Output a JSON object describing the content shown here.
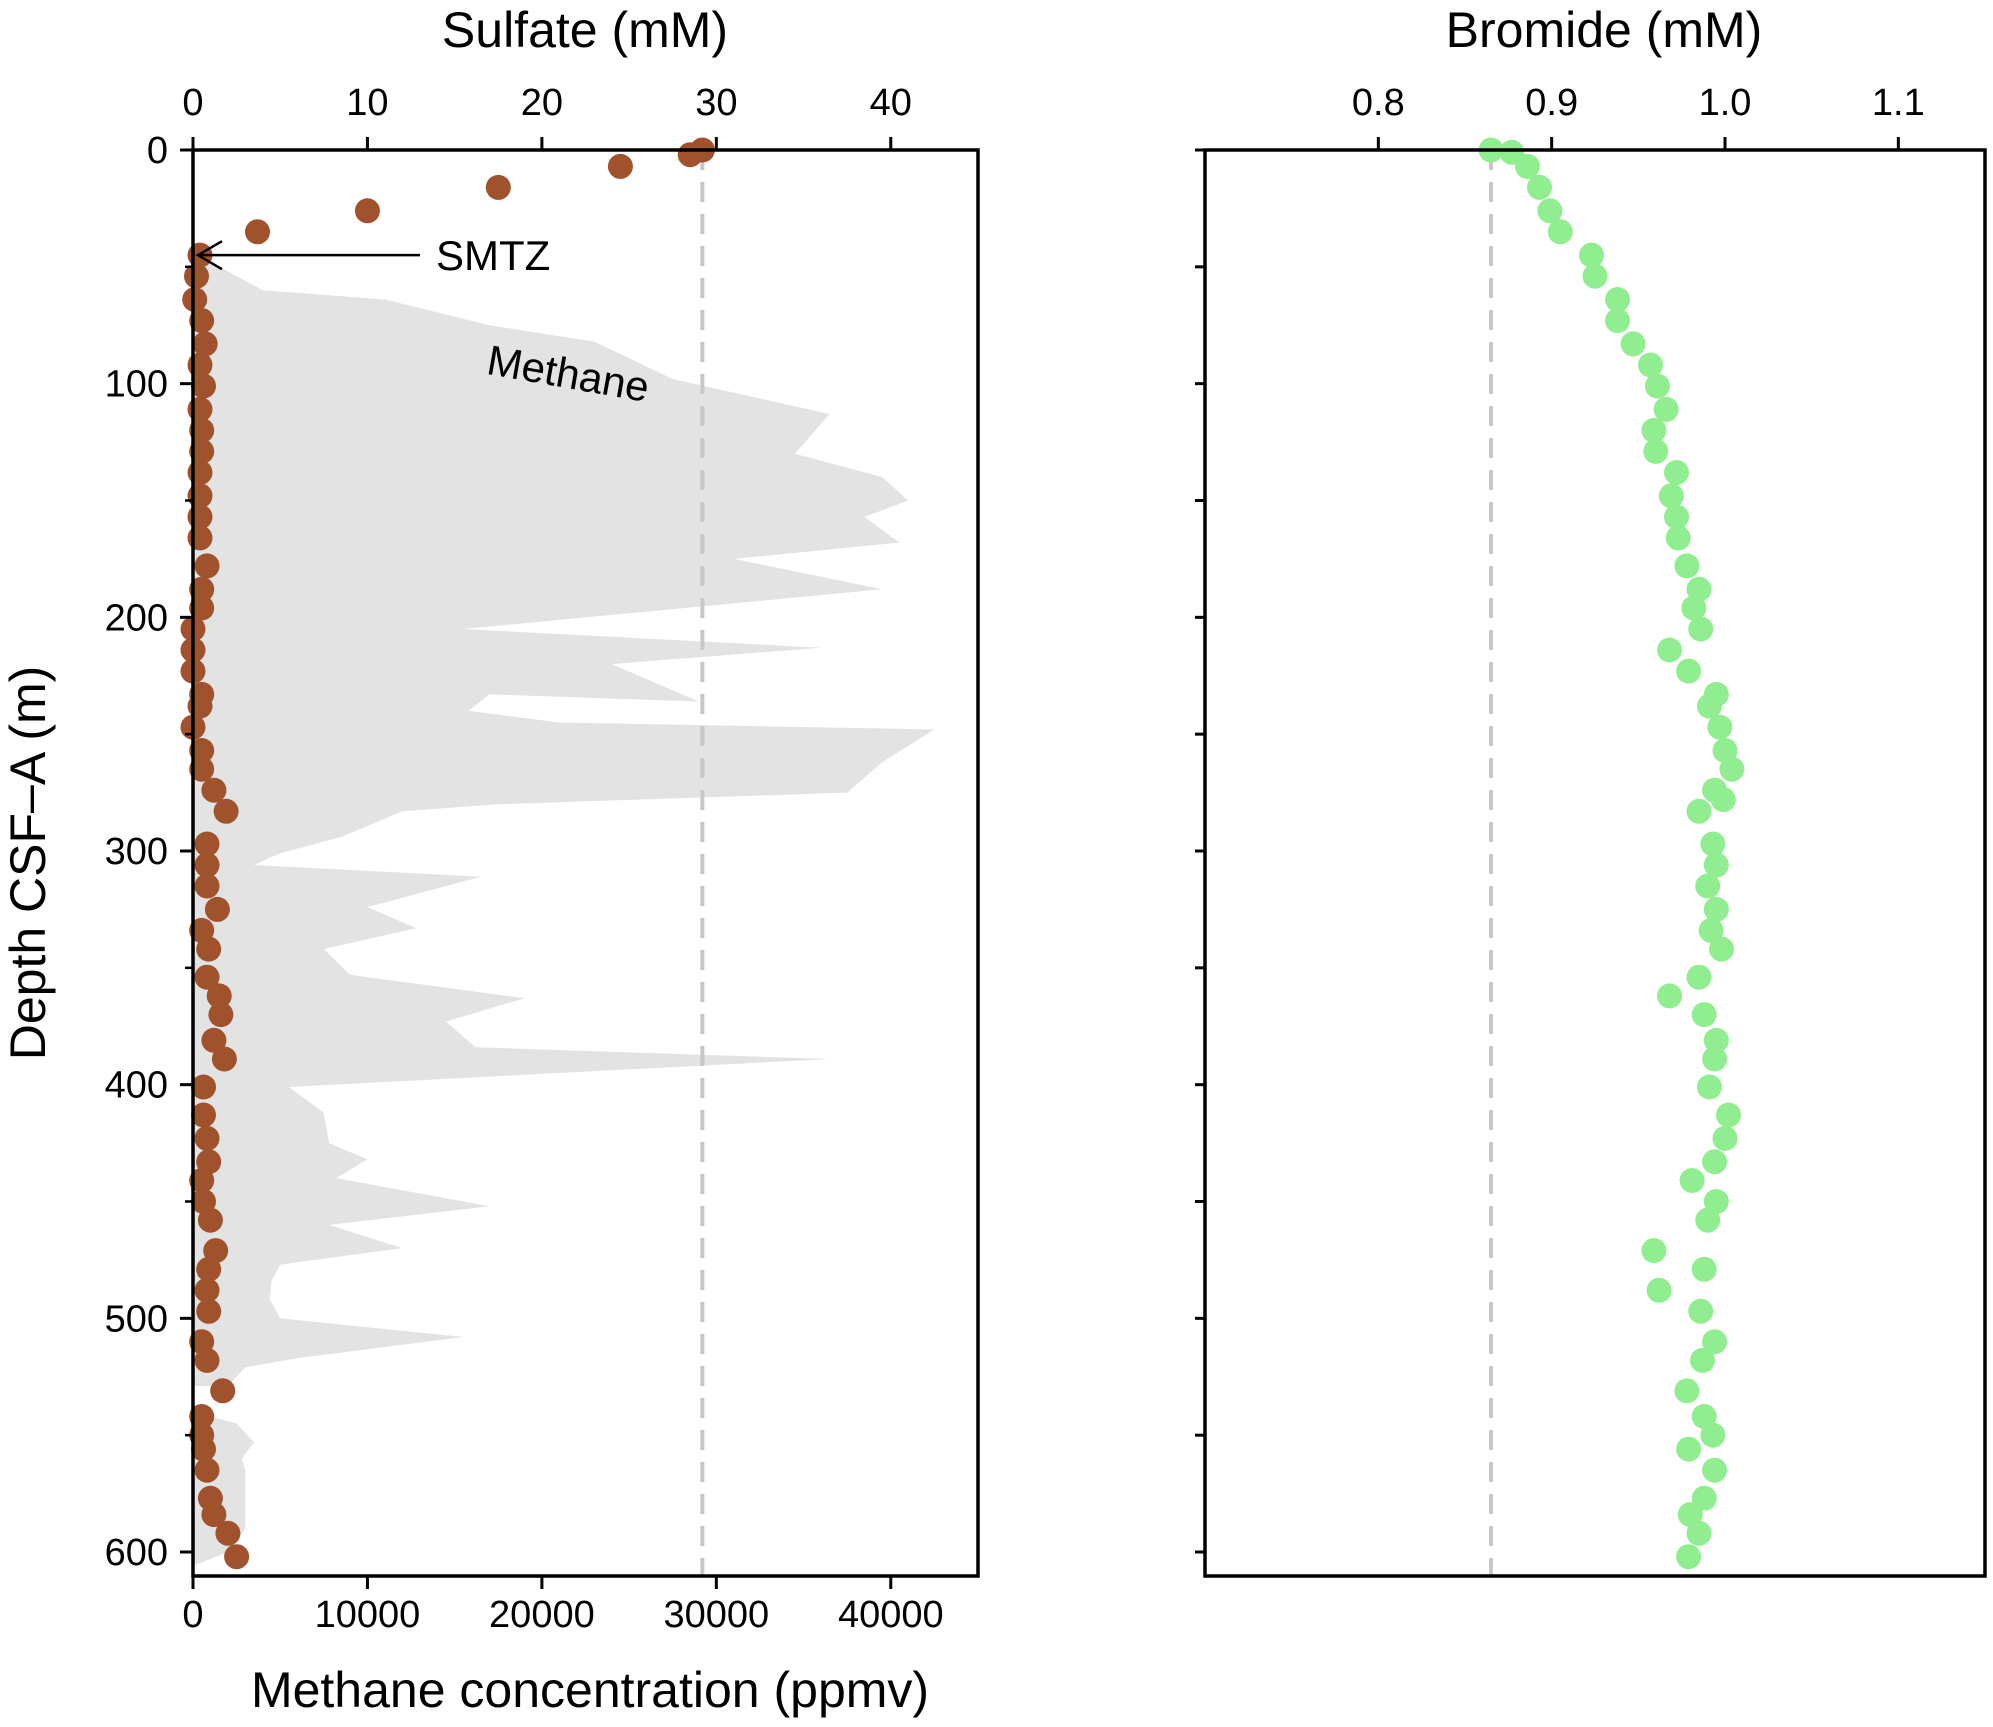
{
  "colors": {
    "sulfate": "#A0522D",
    "bromide": "#90EE90",
    "methane_fill": "#E3E3E3",
    "reference_line": "#C8C8C8",
    "axis": "#000000"
  },
  "chart_data": [
    {
      "type": "scatter",
      "title": "",
      "x_axis_top": {
        "label": "Sulfate (mM)",
        "lim": [
          0,
          45
        ],
        "ticks": [
          0,
          10,
          20,
          30,
          40
        ]
      },
      "x_axis_bottom": {
        "label": "Methane concentration (ppmv)",
        "lim": [
          0,
          45000
        ],
        "ticks": [
          0,
          10000,
          20000,
          30000,
          40000
        ]
      },
      "y_axis": {
        "label": "Depth CSF–A (m)",
        "lim": [
          0,
          610
        ],
        "inverted": true,
        "ticks": [
          0,
          100,
          200,
          300,
          400,
          500,
          600
        ]
      },
      "grid": false,
      "reference_line_sulfate_mM": 29.2,
      "annotations": [
        {
          "text": "SMTZ",
          "depth_m": 45,
          "arrow": true
        },
        {
          "text": "Methane",
          "rotation_deg": 10
        }
      ],
      "series": [
        {
          "name": "Sulfate",
          "kind": "scatter",
          "axis": "top",
          "points": [
            [
              29.2,
              0
            ],
            [
              28.5,
              2
            ],
            [
              24.5,
              7
            ],
            [
              17.5,
              16
            ],
            [
              10.0,
              26
            ],
            [
              3.7,
              35
            ],
            [
              0.4,
              45
            ],
            [
              0.2,
              54
            ],
            [
              0.1,
              64
            ],
            [
              0.5,
              73
            ],
            [
              0.7,
              83
            ],
            [
              0.4,
              92
            ],
            [
              0.6,
              101
            ],
            [
              0.4,
              111
            ],
            [
              0.5,
              120
            ],
            [
              0.5,
              129
            ],
            [
              0.4,
              138
            ],
            [
              0.4,
              148
            ],
            [
              0.4,
              157
            ],
            [
              0.4,
              166
            ],
            [
              0.8,
              178
            ],
            [
              0.5,
              188
            ],
            [
              0.5,
              196
            ],
            [
              0.0,
              205
            ],
            [
              0.0,
              214
            ],
            [
              0.0,
              223
            ],
            [
              0.5,
              233
            ],
            [
              0.4,
              238
            ],
            [
              0.0,
              247
            ],
            [
              0.5,
              257
            ],
            [
              0.5,
              265
            ],
            [
              1.2,
              274
            ],
            [
              1.9,
              283
            ],
            [
              0.8,
              297
            ],
            [
              0.8,
              306
            ],
            [
              0.8,
              315
            ],
            [
              1.4,
              325
            ],
            [
              0.5,
              334
            ],
            [
              0.9,
              342
            ],
            [
              0.8,
              354
            ],
            [
              1.5,
              362
            ],
            [
              1.6,
              370
            ],
            [
              1.2,
              381
            ],
            [
              1.8,
              389
            ],
            [
              0.6,
              401
            ],
            [
              0.6,
              413
            ],
            [
              0.8,
              423
            ],
            [
              0.9,
              433
            ],
            [
              0.5,
              441
            ],
            [
              0.6,
              450
            ],
            [
              1.0,
              458
            ],
            [
              1.3,
              471
            ],
            [
              0.9,
              479
            ],
            [
              0.8,
              488
            ],
            [
              0.9,
              497
            ],
            [
              0.5,
              510
            ],
            [
              0.8,
              518
            ],
            [
              1.7,
              531
            ],
            [
              0.5,
              542
            ],
            [
              0.5,
              550
            ],
            [
              0.6,
              556
            ],
            [
              0.8,
              565
            ],
            [
              1.0,
              577
            ],
            [
              1.2,
              584
            ],
            [
              2.0,
              592
            ],
            [
              2.5,
              602
            ]
          ]
        },
        {
          "name": "Methane",
          "kind": "area",
          "axis": "bottom",
          "points": [
            [
              0,
              45
            ],
            [
              1500,
              50
            ],
            [
              4000,
              60
            ],
            [
              11000,
              64
            ],
            [
              17000,
              75
            ],
            [
              23000,
              82
            ],
            [
              27500,
              98
            ],
            [
              36500,
              113
            ],
            [
              34500,
              130
            ],
            [
              37000,
              135
            ],
            [
              39500,
              140
            ],
            [
              41000,
              150
            ],
            [
              38500,
              157
            ],
            [
              40500,
              168
            ],
            [
              31000,
              175
            ],
            [
              39500,
              188
            ],
            [
              15500,
              205
            ],
            [
              36000,
              213
            ],
            [
              24000,
              220
            ],
            [
              29000,
              236
            ],
            [
              17000,
              233
            ],
            [
              15800,
              240
            ],
            [
              21000,
              245
            ],
            [
              42500,
              248
            ],
            [
              39500,
              262
            ],
            [
              37500,
              275
            ],
            [
              17500,
              280
            ],
            [
              12000,
              283
            ],
            [
              8500,
              294
            ],
            [
              5000,
              301
            ],
            [
              3500,
              306
            ],
            [
              16500,
              311
            ],
            [
              10000,
              324
            ],
            [
              12800,
              333
            ],
            [
              7500,
              342
            ],
            [
              9000,
              353
            ],
            [
              19000,
              363
            ],
            [
              14500,
              373
            ],
            [
              16200,
              384
            ],
            [
              36500,
              389
            ],
            [
              5500,
              401
            ],
            [
              7500,
              412
            ],
            [
              7800,
              425
            ],
            [
              10000,
              432
            ],
            [
              8200,
              440
            ],
            [
              17000,
              452
            ],
            [
              7800,
              460
            ],
            [
              12000,
              470
            ],
            [
              5000,
              477
            ],
            [
              4500,
              484
            ],
            [
              4400,
              492
            ],
            [
              5000,
              500
            ],
            [
              15500,
              508
            ],
            [
              6000,
              517
            ],
            [
              3000,
              521
            ],
            [
              2000,
              529
            ],
            [
              0,
              529
            ],
            [
              0,
              540
            ],
            [
              2500,
              545
            ],
            [
              3500,
              553
            ],
            [
              2800,
              560
            ],
            [
              3000,
              565
            ],
            [
              3000,
              590
            ],
            [
              2000,
              600
            ],
            [
              0,
              606
            ]
          ]
        }
      ]
    },
    {
      "type": "scatter",
      "title": "",
      "x_axis_top": {
        "label": "Bromide (mM)",
        "lim": [
          0.7,
          1.15
        ],
        "ticks": [
          0.8,
          0.9,
          1.0,
          1.1
        ],
        "tick_labels": [
          "0.8",
          "0.9",
          "1.0",
          "1.1"
        ]
      },
      "y_axis": {
        "lim": [
          0,
          610
        ],
        "inverted": true,
        "ticks": [
          0,
          50,
          100,
          150,
          200,
          250,
          300,
          350,
          400,
          450,
          500,
          550,
          600
        ],
        "tick_labels_shown": false
      },
      "grid": false,
      "reference_line_bromide_mM": 0.865,
      "series": [
        {
          "name": "Bromide",
          "kind": "scatter",
          "points": [
            [
              0.865,
              0
            ],
            [
              0.877,
              1
            ],
            [
              0.886,
              7
            ],
            [
              0.893,
              16
            ],
            [
              0.899,
              26
            ],
            [
              0.905,
              35
            ],
            [
              0.923,
              45
            ],
            [
              0.925,
              54
            ],
            [
              0.938,
              64
            ],
            [
              0.938,
              73
            ],
            [
              0.947,
              83
            ],
            [
              0.957,
              92
            ],
            [
              0.961,
              101
            ],
            [
              0.966,
              111
            ],
            [
              0.959,
              120
            ],
            [
              0.96,
              129
            ],
            [
              0.972,
              138
            ],
            [
              0.969,
              148
            ],
            [
              0.972,
              157
            ],
            [
              0.973,
              166
            ],
            [
              0.978,
              178
            ],
            [
              0.985,
              188
            ],
            [
              0.982,
              196
            ],
            [
              0.986,
              205
            ],
            [
              0.968,
              214
            ],
            [
              0.979,
              223
            ],
            [
              0.995,
              233
            ],
            [
              0.991,
              238
            ],
            [
              0.997,
              247
            ],
            [
              1.0,
              257
            ],
            [
              1.004,
              265
            ],
            [
              0.994,
              274
            ],
            [
              0.999,
              278
            ],
            [
              0.985,
              283
            ],
            [
              0.993,
              297
            ],
            [
              0.995,
              306
            ],
            [
              0.99,
              315
            ],
            [
              0.995,
              325
            ],
            [
              0.992,
              334
            ],
            [
              0.998,
              342
            ],
            [
              0.985,
              354
            ],
            [
              0.968,
              362
            ],
            [
              0.988,
              370
            ],
            [
              0.995,
              381
            ],
            [
              0.994,
              389
            ],
            [
              0.991,
              401
            ],
            [
              1.002,
              413
            ],
            [
              1.0,
              423
            ],
            [
              0.994,
              433
            ],
            [
              0.981,
              441
            ],
            [
              0.995,
              450
            ],
            [
              0.99,
              458
            ],
            [
              0.959,
              471
            ],
            [
              0.988,
              479
            ],
            [
              0.962,
              488
            ],
            [
              0.986,
              497
            ],
            [
              0.994,
              510
            ],
            [
              0.987,
              518
            ],
            [
              0.978,
              531
            ],
            [
              0.988,
              542
            ],
            [
              0.993,
              550
            ],
            [
              0.979,
              556
            ],
            [
              0.994,
              565
            ],
            [
              0.988,
              577
            ],
            [
              0.98,
              584
            ],
            [
              0.985,
              592
            ],
            [
              0.979,
              602
            ]
          ]
        }
      ]
    }
  ]
}
